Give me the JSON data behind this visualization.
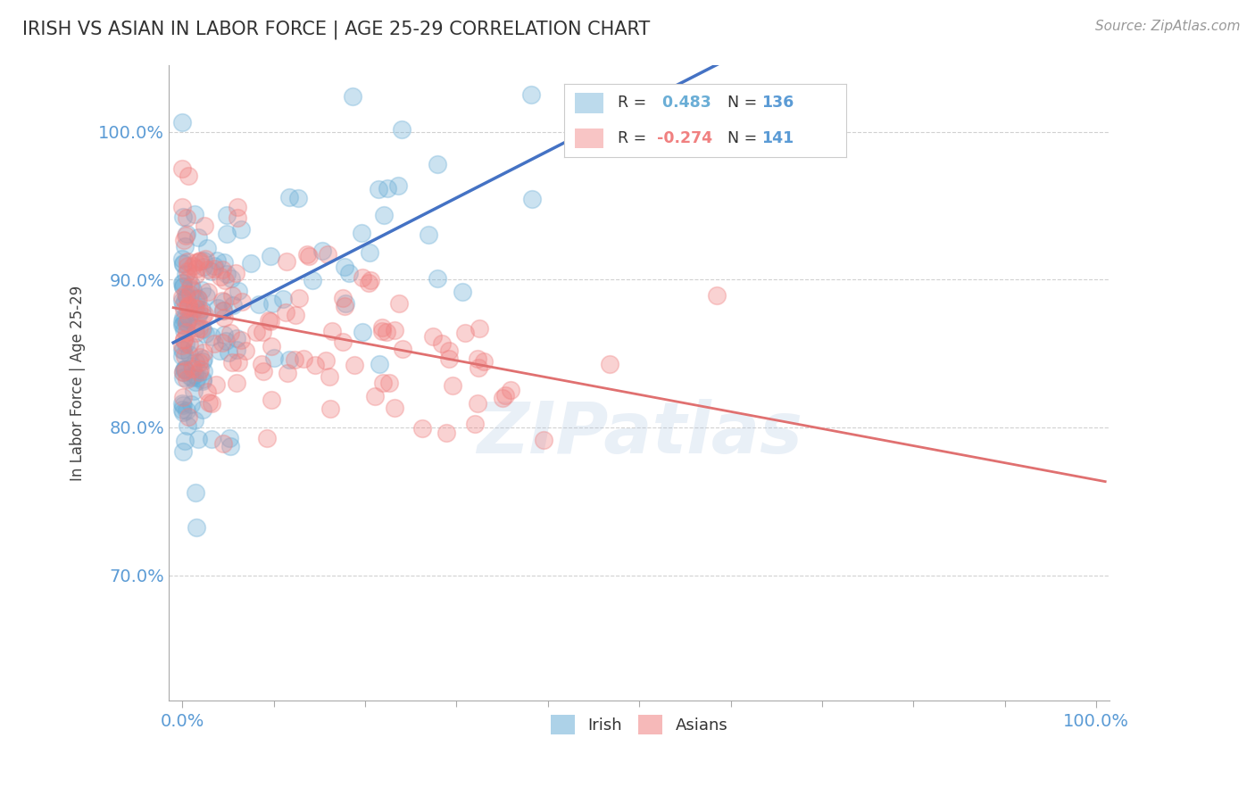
{
  "title": "IRISH VS ASIAN IN LABOR FORCE | AGE 25-29 CORRELATION CHART",
  "source": "Source: ZipAtlas.com",
  "ylabel": "In Labor Force | Age 25-29",
  "irish_color": "#6baed6",
  "asian_color": "#f08080",
  "irish_R": 0.483,
  "irish_N": 136,
  "asian_R": -0.274,
  "asian_N": 141,
  "watermark": "ZIPatlas",
  "background_color": "#ffffff",
  "grid_color": "#cccccc",
  "tick_color": "#5b9bd5",
  "ytick_values": [
    0.7,
    0.8,
    0.9,
    1.0
  ],
  "ytick_labels": [
    "70.0%",
    "80.0%",
    "90.0%",
    "100.0%"
  ],
  "irish_line_color": "#4472c4",
  "asian_line_color": "#e07070",
  "ylim": [
    0.615,
    1.045
  ],
  "xlim": [
    -0.015,
    1.015
  ]
}
